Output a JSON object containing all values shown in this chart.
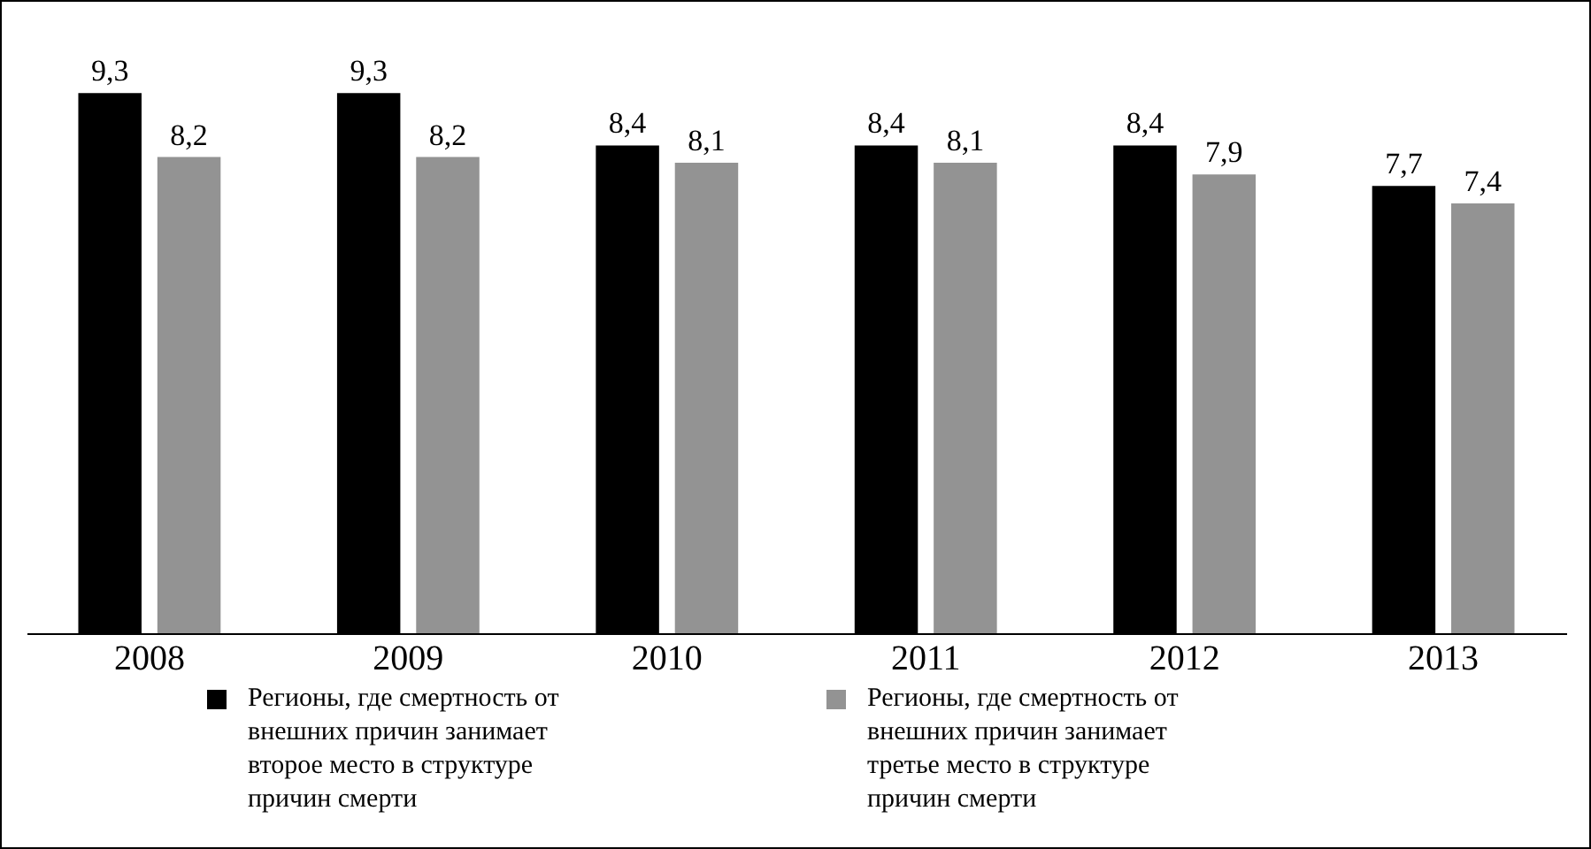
{
  "chart_data": {
    "type": "bar",
    "categories": [
      "2008",
      "2009",
      "2010",
      "2011",
      "2012",
      "2013"
    ],
    "series": [
      {
        "name": "Регионы, где смертность от внешних причин занимает второе место в структуре причин смерти",
        "color": "#000000",
        "values": [
          9.3,
          9.3,
          8.4,
          8.4,
          8.4,
          7.7
        ],
        "value_labels": [
          "9,3",
          "9,3",
          "8,4",
          "8,4",
          "8,4",
          "7,7"
        ]
      },
      {
        "name": "Регионы, где смертность от внешних причин занимает третье место в структуре причин смерти",
        "color": "#939393",
        "values": [
          8.2,
          8.2,
          8.1,
          8.1,
          7.9,
          7.4
        ],
        "value_labels": [
          "8,2",
          "8,2",
          "8,1",
          "8,1",
          "7,9",
          "7,4"
        ]
      }
    ],
    "legend": "bottom"
  }
}
